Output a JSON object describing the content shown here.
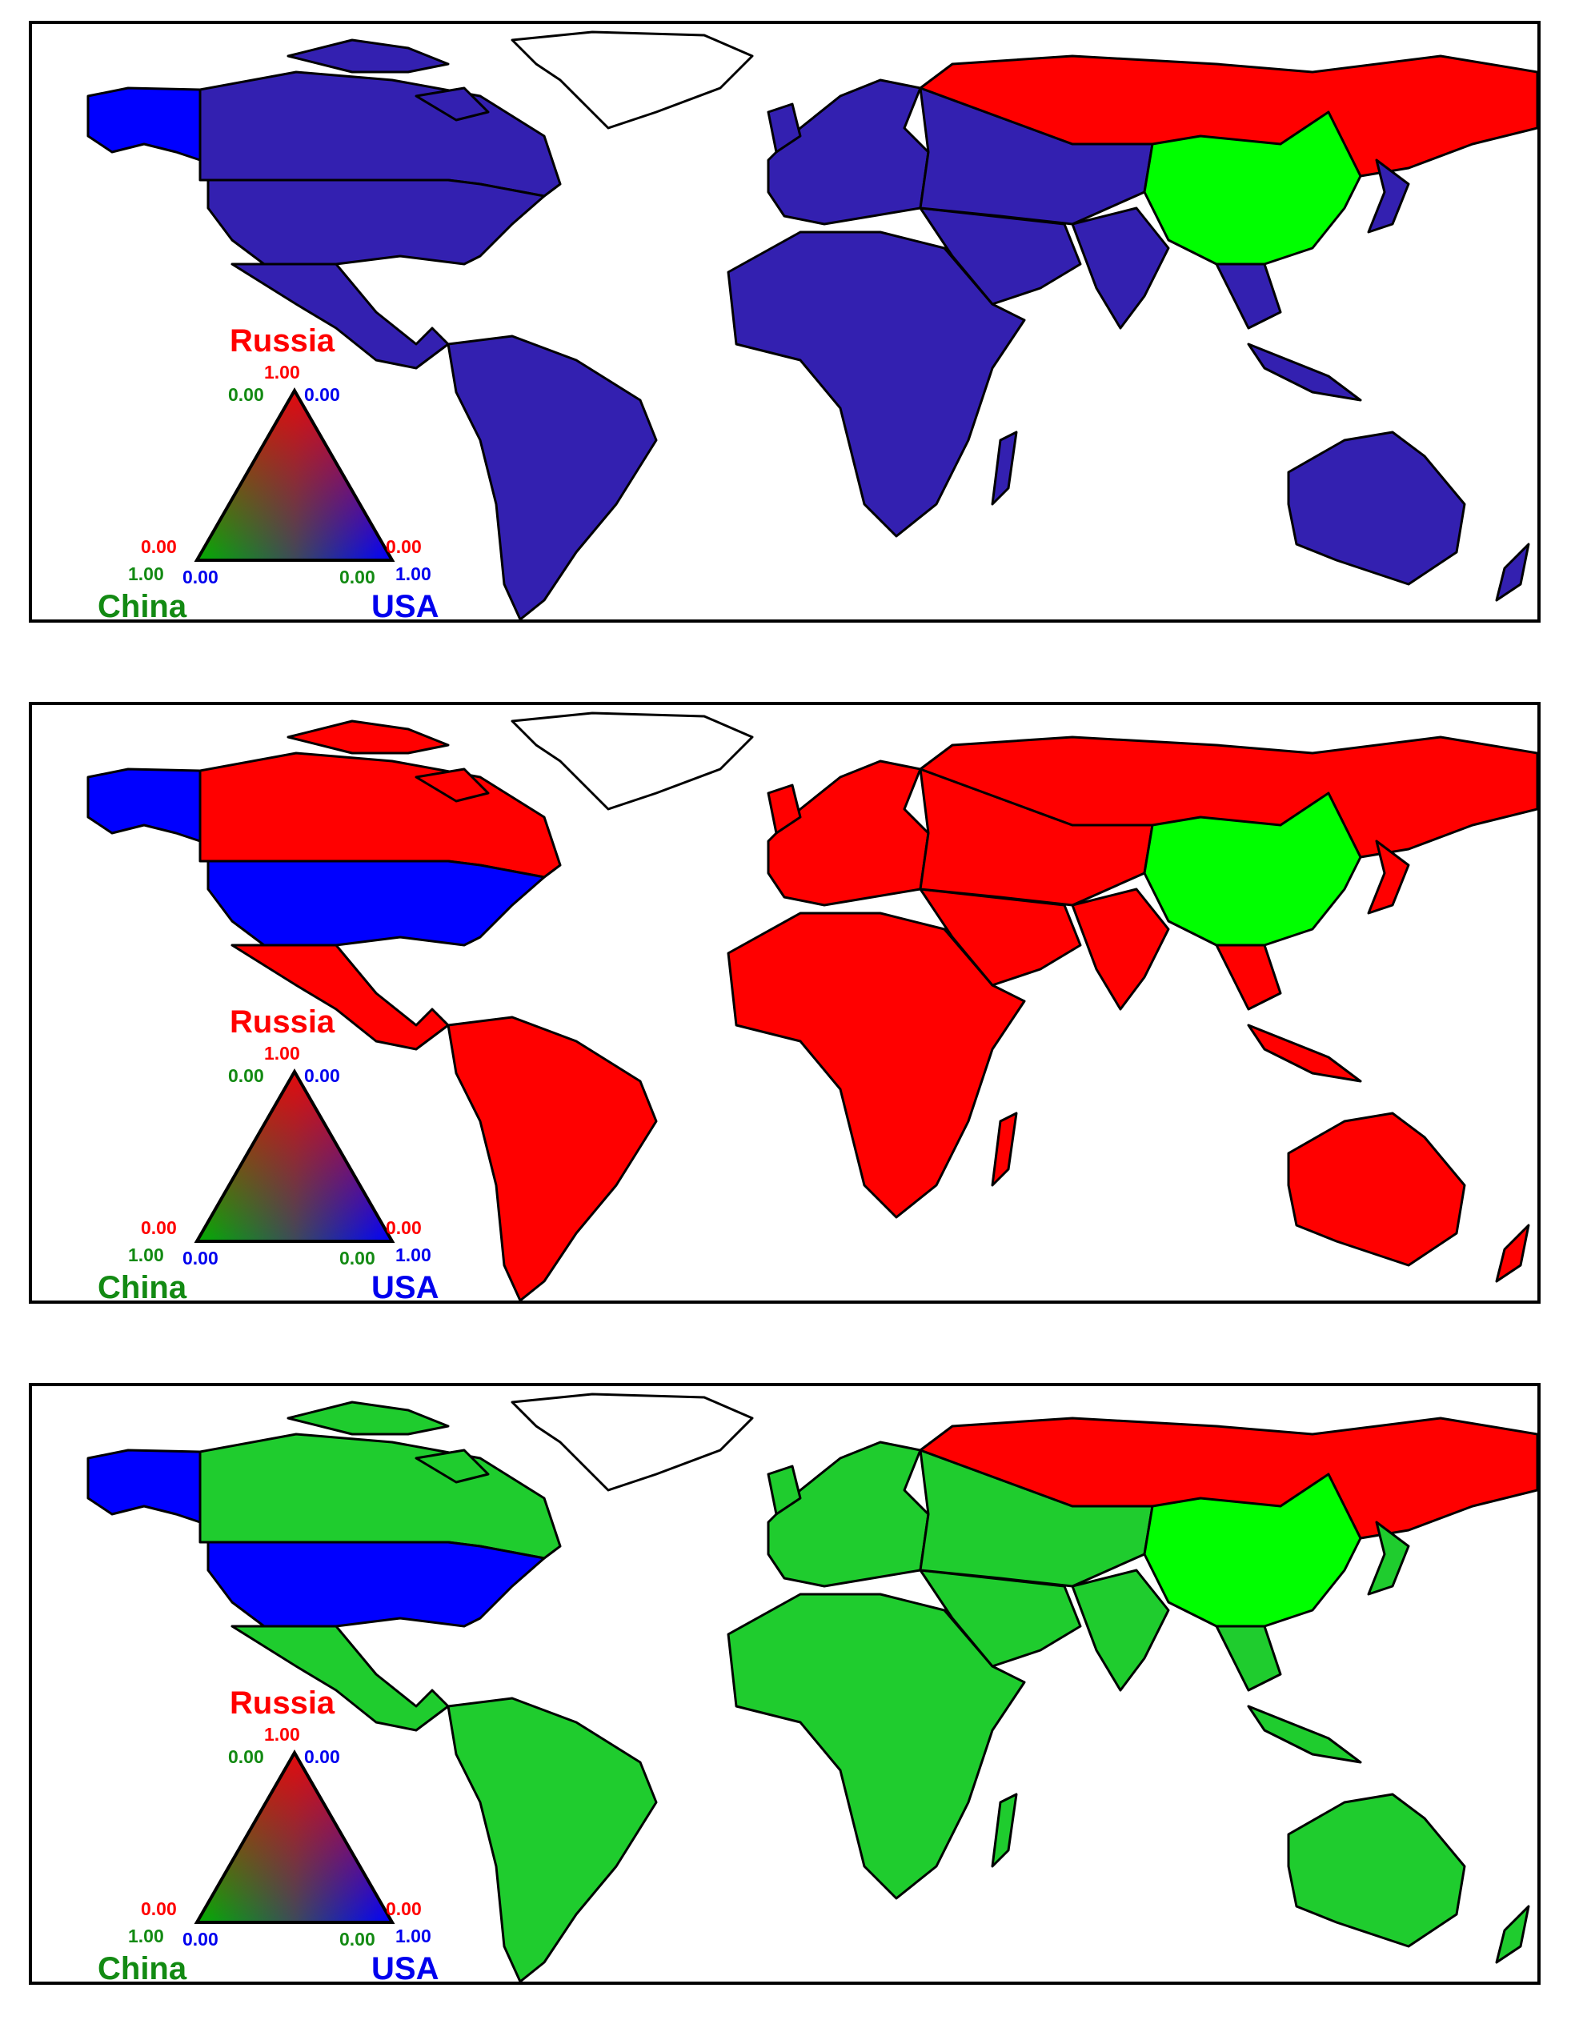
{
  "colors": {
    "russia": "#ff0000",
    "china": "#00ff00",
    "usa": "#0000ff",
    "blue_panel": "#3320b0",
    "green_panel": "#1fcc2e",
    "greenland": "#ffffff"
  },
  "legend": {
    "russia_label": "Russia",
    "china_label": "China",
    "usa_label": "USA",
    "top_red": "1.00",
    "top_green": "0.00",
    "top_blue": "0.00",
    "left_red": "0.00",
    "left_green": "1.00",
    "left_blue": "0.00",
    "right_red": "0.00",
    "right_green": "0.00",
    "right_blue": "1.00"
  },
  "panels": [
    {
      "id": "panel-1",
      "world_color": "#3320b0",
      "americas": "#3320b0",
      "canada": "#3320b0",
      "usa": "#3320b0",
      "alaska": "#0000ff"
    },
    {
      "id": "panel-2",
      "world_color": "#ff0000",
      "americas": "#ff0000",
      "canada": "#ff0000",
      "usa": "#0000ff",
      "alaska": "#0000ff"
    },
    {
      "id": "panel-3",
      "world_color": "#1fcc2e",
      "americas": "#1fcc2e",
      "canada": "#1fcc2e",
      "usa": "#0000ff",
      "alaska": "#0000ff"
    }
  ]
}
